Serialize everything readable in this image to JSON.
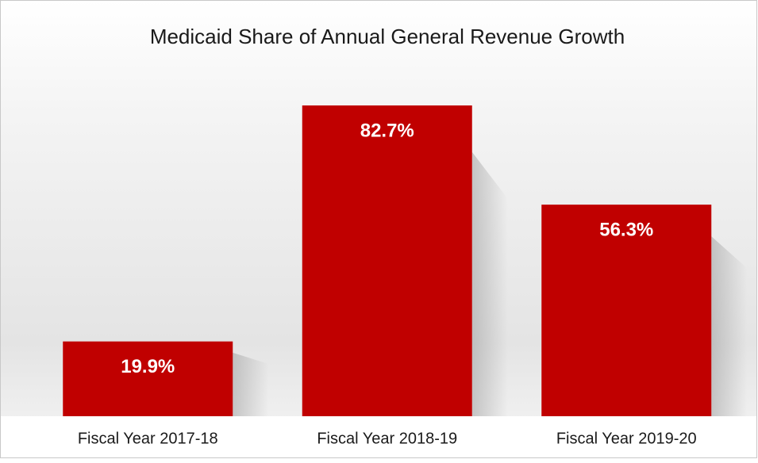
{
  "chart_data": {
    "type": "bar",
    "title": "Medicaid Share of Annual General Revenue Growth",
    "categories": [
      "Fiscal Year 2017-18",
      "Fiscal Year 2018-19",
      "Fiscal Year 2019-20"
    ],
    "values": [
      19.9,
      82.7,
      56.3
    ],
    "value_labels": [
      "19.9%",
      "82.7%",
      "56.3%"
    ],
    "color": "#c00000",
    "ylim": [
      0,
      100
    ]
  }
}
